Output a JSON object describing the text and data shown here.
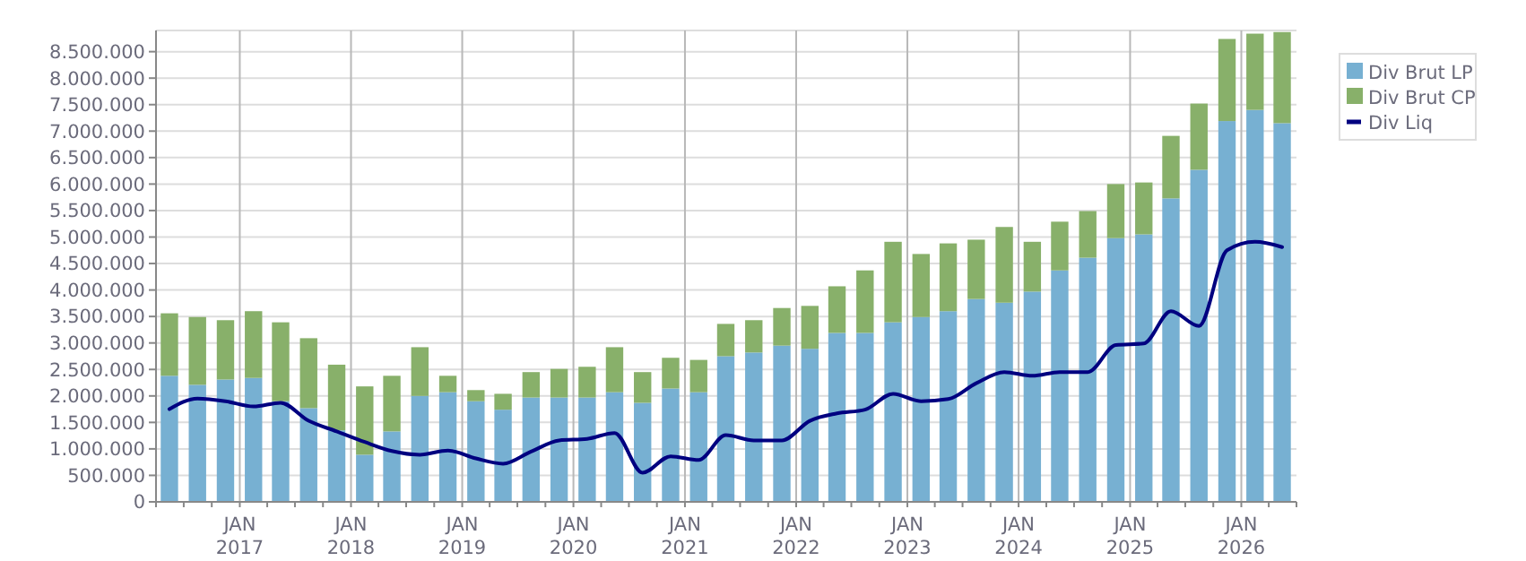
{
  "chart_data": {
    "type": "bar",
    "stacked": true,
    "legend": "top right",
    "grid": true,
    "x": [
      "2016-05-15",
      "2016-08-15",
      "2016-11-15",
      "2017-02-15",
      "2017-05-15",
      "2017-08-15",
      "2017-11-15",
      "2018-02-15",
      "2018-05-15",
      "2018-08-15",
      "2018-11-15",
      "2019-02-15",
      "2019-05-15",
      "2019-08-15",
      "2019-11-15",
      "2020-02-15",
      "2020-05-15",
      "2020-08-15",
      "2020-11-15",
      "2021-02-15",
      "2021-05-15",
      "2021-08-15",
      "2021-11-15",
      "2022-02-15",
      "2022-05-15",
      "2022-08-15",
      "2022-11-15",
      "2023-02-15",
      "2023-05-15",
      "2023-08-15",
      "2023-11-15",
      "2024-02-15",
      "2024-05-15",
      "2024-08-15",
      "2024-11-15",
      "2025-02-15",
      "2025-05-15",
      "2025-08-15",
      "2025-11-15",
      "2026-02-15",
      "2026-05-15"
    ],
    "series": [
      {
        "name": "Div Brut LP",
        "color": "#77b0d2",
        "values": [
          2380000,
          2210000,
          2310000,
          2340000,
          1900000,
          1770000,
          1350000,
          890000,
          1330000,
          2000000,
          2070000,
          1900000,
          1740000,
          1970000,
          1970000,
          1970000,
          2070000,
          1870000,
          2140000,
          2070000,
          2750000,
          2820000,
          2950000,
          2890000,
          3190000,
          3190000,
          3390000,
          3490000,
          3600000,
          3830000,
          3760000,
          3970000,
          4370000,
          4610000,
          4980000,
          5050000,
          5730000,
          6270000,
          7190000,
          7400000,
          7150000
        ]
      },
      {
        "name": "Div Brut CP",
        "color": "#88b06a",
        "values": [
          1180000,
          1280000,
          1120000,
          1260000,
          1490000,
          1320000,
          1240000,
          1290000,
          1050000,
          920000,
          310000,
          210000,
          300000,
          480000,
          540000,
          580000,
          850000,
          580000,
          580000,
          610000,
          610000,
          610000,
          710000,
          810000,
          880000,
          1180000,
          1520000,
          1190000,
          1280000,
          1120000,
          1430000,
          940000,
          920000,
          880000,
          1020000,
          980000,
          1180000,
          1250000,
          1550000,
          1440000,
          1720000
        ]
      },
      {
        "name": "Div Liq",
        "type": "line",
        "color": "#000080",
        "values": [
          1750000,
          1950000,
          1900000,
          1800000,
          1870000,
          1530000,
          1330000,
          1130000,
          960000,
          890000,
          970000,
          820000,
          720000,
          950000,
          1160000,
          1190000,
          1300000,
          550000,
          860000,
          790000,
          1260000,
          1160000,
          1160000,
          1530000,
          1670000,
          1740000,
          2040000,
          1900000,
          1940000,
          2240000,
          2450000,
          2380000,
          2450000,
          2450000,
          2960000,
          2990000,
          3600000,
          3320000,
          4750000,
          4910000,
          4810000
        ]
      }
    ],
    "xlim": [
      "2016-04-01",
      "2026-07-01"
    ],
    "xticks": [
      {
        "value": "2016-04-01",
        "label": null
      },
      {
        "value": "2016-07-01",
        "label": null
      },
      {
        "value": "2016-10-01",
        "label": null
      },
      {
        "value": "2017-01-01",
        "label": "JAN\n2017"
      },
      {
        "value": "2017-04-01",
        "label": null
      },
      {
        "value": "2017-07-01",
        "label": null
      },
      {
        "value": "2017-10-01",
        "label": null
      },
      {
        "value": "2018-01-01",
        "label": "JAN\n2018"
      },
      {
        "value": "2018-04-01",
        "label": null
      },
      {
        "value": "2018-07-01",
        "label": null
      },
      {
        "value": "2018-10-01",
        "label": null
      },
      {
        "value": "2019-01-01",
        "label": "JAN\n2019"
      },
      {
        "value": "2019-04-01",
        "label": null
      },
      {
        "value": "2019-07-01",
        "label": null
      },
      {
        "value": "2019-10-01",
        "label": null
      },
      {
        "value": "2020-01-01",
        "label": "JAN\n2020"
      },
      {
        "value": "2020-04-01",
        "label": null
      },
      {
        "value": "2020-07-01",
        "label": null
      },
      {
        "value": "2020-10-01",
        "label": null
      },
      {
        "value": "2021-01-01",
        "label": "JAN\n2021"
      },
      {
        "value": "2021-04-01",
        "label": null
      },
      {
        "value": "2021-07-01",
        "label": null
      },
      {
        "value": "2021-10-01",
        "label": null
      },
      {
        "value": "2022-01-01",
        "label": "JAN\n2022"
      },
      {
        "value": "2022-04-01",
        "label": null
      },
      {
        "value": "2022-07-01",
        "label": null
      },
      {
        "value": "2022-10-01",
        "label": null
      },
      {
        "value": "2023-01-01",
        "label": "JAN\n2023"
      },
      {
        "value": "2023-04-01",
        "label": null
      },
      {
        "value": "2023-07-01",
        "label": null
      },
      {
        "value": "2023-10-01",
        "label": null
      },
      {
        "value": "2024-01-01",
        "label": "JAN\n2024"
      },
      {
        "value": "2024-04-01",
        "label": null
      },
      {
        "value": "2024-07-01",
        "label": null
      },
      {
        "value": "2024-10-01",
        "label": null
      },
      {
        "value": "2025-01-01",
        "label": "JAN\n2025"
      },
      {
        "value": "2025-04-01",
        "label": null
      },
      {
        "value": "2025-07-01",
        "label": null
      },
      {
        "value": "2025-10-01",
        "label": null
      },
      {
        "value": "2026-01-01",
        "label": "JAN\n2026"
      },
      {
        "value": "2026-04-01",
        "label": null
      },
      {
        "value": "2026-07-01",
        "label": null
      }
    ],
    "ylim": [
      0,
      8900000
    ],
    "yticks": [
      0,
      {
        "value": 500000,
        "label": "500.000"
      },
      {
        "value": 1000000,
        "label": "1.000.000"
      },
      {
        "value": 1500000,
        "label": "1.500.000"
      },
      {
        "value": 2000000,
        "label": "2.000.000"
      },
      {
        "value": 2500000,
        "label": "2.500.000"
      },
      {
        "value": 3000000,
        "label": "3.000.000"
      },
      {
        "value": 3500000,
        "label": "3.500.000"
      },
      {
        "value": 4000000,
        "label": "4.000.000"
      },
      {
        "value": 4500000,
        "label": "4.500.000"
      },
      {
        "value": 5000000,
        "label": "5.000.000"
      },
      {
        "value": 5500000,
        "label": "5.500.000"
      },
      {
        "value": 6000000,
        "label": "6.000.000"
      },
      {
        "value": 6500000,
        "label": "6.500.000"
      },
      {
        "value": 7000000,
        "label": "7.000.000"
      },
      {
        "value": 7500000,
        "label": "7.500.000"
      },
      {
        "value": 8000000,
        "label": "8.000.000"
      },
      {
        "value": 8500000,
        "label": "8.500.000"
      }
    ]
  }
}
